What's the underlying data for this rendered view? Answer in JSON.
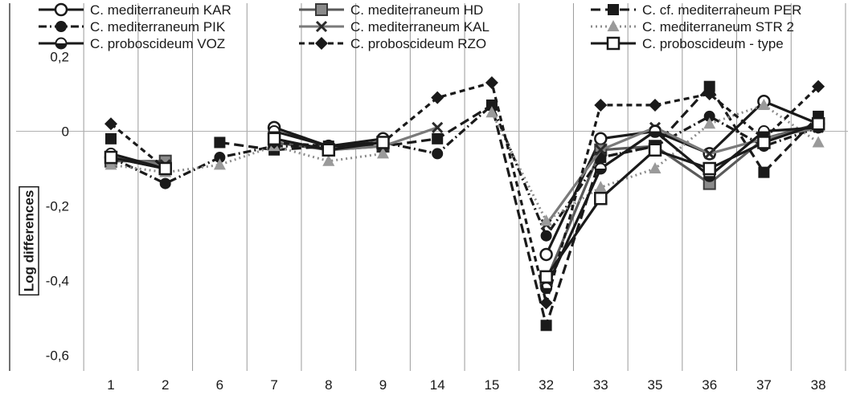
{
  "chart_data": {
    "type": "line",
    "title": "",
    "xlabel": "",
    "ylabel": "Log differences",
    "categories": [
      "1",
      "2",
      "6",
      "7",
      "8",
      "9",
      "14",
      "15",
      "32",
      "33",
      "35",
      "36",
      "37",
      "38"
    ],
    "yticks": [
      "0,2",
      "0",
      "-0,2",
      "-0,4",
      "-0,6"
    ],
    "ylim": [
      -0.6,
      0.25
    ],
    "legend_position": "top",
    "grid": "vertical",
    "series": [
      {
        "name": "C. mediterraneum KAR",
        "color": "#1a1a1a",
        "dash": "solid",
        "marker": "circle-open",
        "values": [
          -0.07,
          -0.1,
          null,
          0.01,
          -0.04,
          -0.02,
          null,
          null,
          -0.33,
          -0.02,
          0.0,
          -0.06,
          0.08,
          0.02
        ]
      },
      {
        "name": "C. mediterraneum HD",
        "color": "#5a5a5a",
        "dash": "solid",
        "marker": "square-gray",
        "values": [
          -0.08,
          -0.08,
          null,
          -0.03,
          -0.05,
          -0.04,
          null,
          null,
          -0.4,
          -0.05,
          -0.04,
          -0.14,
          -0.02,
          0.02
        ]
      },
      {
        "name": "C.  cf. mediterraneum PER",
        "color": "#1a1a1a",
        "dash": "longdash",
        "marker": "square",
        "values": [
          -0.02,
          null,
          -0.03,
          -0.05,
          -0.04,
          -0.04,
          -0.02,
          0.07,
          -0.52,
          -0.07,
          -0.04,
          0.12,
          -0.11,
          0.04
        ]
      },
      {
        "name": "C. mediterraneum  PIK",
        "color": "#1a1a1a",
        "dash": "dashdot",
        "marker": "circle",
        "values": [
          -0.07,
          -0.14,
          -0.07,
          -0.04,
          -0.04,
          -0.03,
          -0.06,
          0.07,
          -0.28,
          -0.07,
          -0.04,
          0.04,
          -0.04,
          0.01
        ]
      },
      {
        "name": "C. mediterraneum KAL",
        "color": "#7a7a7a",
        "dash": "solid",
        "marker": "x",
        "values": [
          -0.07,
          -0.09,
          null,
          -0.02,
          -0.05,
          -0.04,
          0.01,
          null,
          -0.25,
          -0.05,
          0.01,
          -0.06,
          -0.02,
          0.01
        ]
      },
      {
        "name": "C. mediterraneum STR 2",
        "color": "#8c8c8c",
        "dash": "dotted",
        "marker": "triangle",
        "values": [
          -0.09,
          -0.11,
          -0.09,
          -0.04,
          -0.08,
          -0.06,
          null,
          0.05,
          -0.24,
          -0.15,
          -0.1,
          0.02,
          0.07,
          -0.03
        ]
      },
      {
        "name": "C. proboscideum VOZ",
        "color": "#1a1a1a",
        "dash": "solid",
        "marker": "circle-half",
        "values": [
          -0.06,
          -0.1,
          null,
          0.0,
          -0.04,
          -0.03,
          null,
          null,
          -0.42,
          -0.1,
          0.0,
          -0.12,
          0.0,
          0.01
        ]
      },
      {
        "name": "C. proboscideum RZO",
        "color": "#1a1a1a",
        "dash": "dash",
        "marker": "diamond",
        "values": [
          0.02,
          -0.1,
          null,
          -0.03,
          -0.04,
          -0.03,
          0.09,
          0.13,
          -0.46,
          0.07,
          0.07,
          0.1,
          -0.02,
          0.12
        ]
      },
      {
        "name": "C. proboscideum - type",
        "color": "#1a1a1a",
        "dash": "solid",
        "marker": "square-open",
        "values": [
          -0.07,
          -0.1,
          null,
          -0.02,
          -0.05,
          -0.03,
          null,
          null,
          -0.39,
          -0.18,
          -0.05,
          -0.1,
          -0.03,
          0.02
        ]
      }
    ]
  }
}
